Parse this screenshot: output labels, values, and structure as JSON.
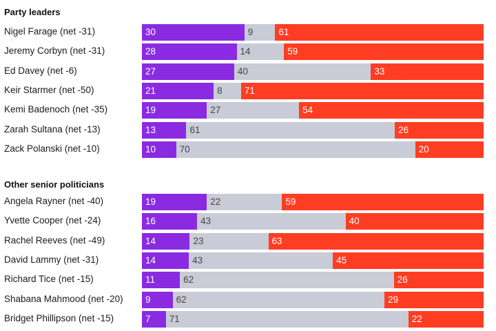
{
  "colors": {
    "favourable": "#8a2be2",
    "neither": "#c9ccd6",
    "unfavourable": "#ff3d22"
  },
  "chart_data": {
    "type": "bar",
    "stacked": true,
    "orientation": "horizontal",
    "series": [
      {
        "key": "favourable",
        "color": "#8a2be2"
      },
      {
        "key": "neither",
        "color": "#c9ccd6"
      },
      {
        "key": "unfavourable",
        "color": "#ff3d22"
      }
    ],
    "groups": [
      {
        "title": "Party leaders",
        "rows": [
          {
            "label": "Nigel Farage (net -31)",
            "values": [
              30,
              9,
              61
            ]
          },
          {
            "label": "Jeremy Corbyn (net -31)",
            "values": [
              28,
              14,
              59
            ]
          },
          {
            "label": "Ed Davey (net -6)",
            "values": [
              27,
              40,
              33
            ]
          },
          {
            "label": "Keir Starmer (net -50)",
            "values": [
              21,
              8,
              71
            ]
          },
          {
            "label": "Kemi Badenoch (net -35)",
            "values": [
              19,
              27,
              54
            ]
          },
          {
            "label": "Zarah Sultana (net -13)",
            "values": [
              13,
              61,
              26
            ]
          },
          {
            "label": "Zack Polanski (net -10)",
            "values": [
              10,
              70,
              20
            ]
          }
        ]
      },
      {
        "title": "Other senior politicians",
        "rows": [
          {
            "label": "Angela Rayner (net -40)",
            "values": [
              19,
              22,
              59
            ]
          },
          {
            "label": "Yvette Cooper (net -24)",
            "values": [
              16,
              43,
              40
            ]
          },
          {
            "label": "Rachel Reeves (net -49)",
            "values": [
              14,
              23,
              63
            ]
          },
          {
            "label": "David Lammy (net -31)",
            "values": [
              14,
              43,
              45
            ]
          },
          {
            "label": "Richard Tice (net -15)",
            "values": [
              11,
              62,
              26
            ]
          },
          {
            "label": "Shabana Mahmood (net -20)",
            "values": [
              9,
              62,
              29
            ]
          },
          {
            "label": "Bridget Phillipson (net -15)",
            "values": [
              7,
              71,
              22
            ]
          }
        ]
      }
    ]
  }
}
